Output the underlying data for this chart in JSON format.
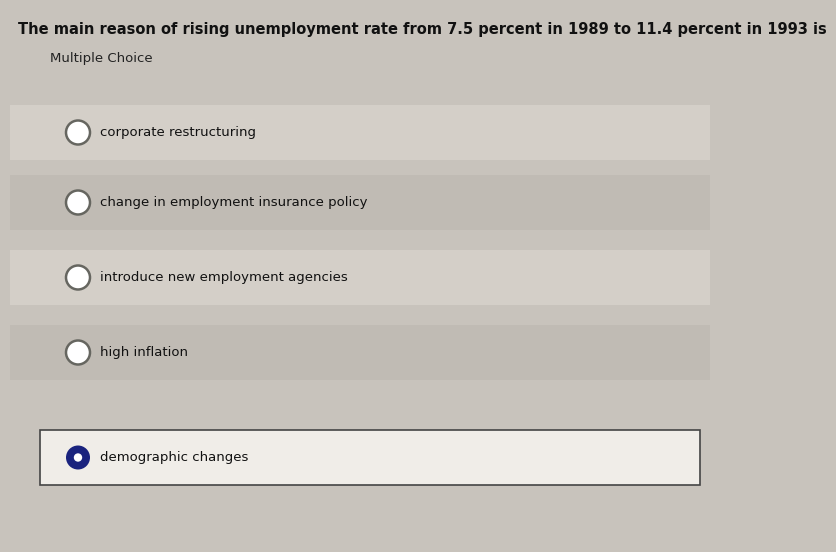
{
  "question": "The main reason of rising unemployment rate from 7.5 percent in 1989 to 11.4 percent in 1993 is",
  "subtitle": "Multiple Choice",
  "choices": [
    "corporate restructuring",
    "change in employment insurance policy",
    "introduce new employment agencies",
    "high inflation",
    "demographic changes"
  ],
  "selected_index": 4,
  "bg_color": "#c8c3bc",
  "row_light": "#d4cfc8",
  "row_dark": "#c0bbb4",
  "selected_bg": "#f0ede8",
  "selected_border": "#444444",
  "filled_color": "#1a237e",
  "question_font_size": 10.5,
  "subtitle_font_size": 9.5,
  "choice_font_size": 9.5
}
